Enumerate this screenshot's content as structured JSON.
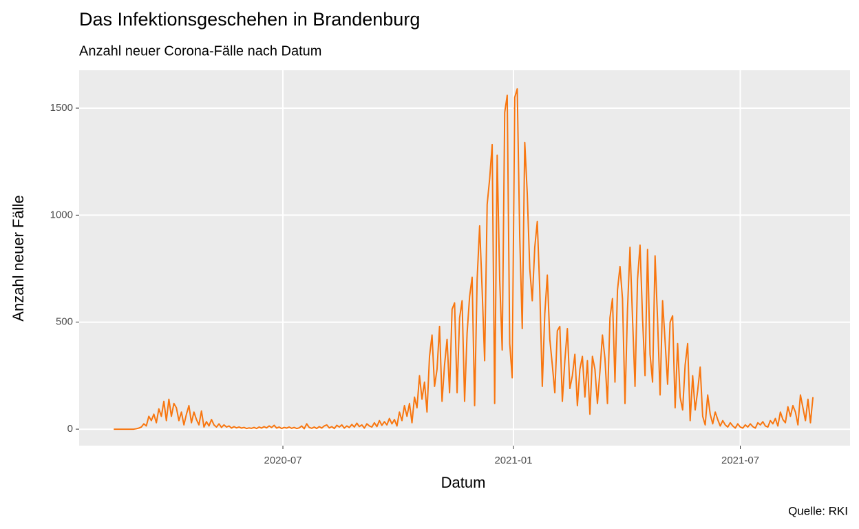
{
  "chart_data": {
    "type": "line",
    "title": "Das Infektionsgeschehen in Brandenburg",
    "subtitle": "Anzahl neuer Corona-Fälle nach Datum",
    "x_label": "Datum",
    "y_label": "Anzahl neuer Fälle",
    "caption": "Quelle: RKI",
    "x": [
      47,
      49,
      51,
      53,
      55,
      57,
      59,
      61,
      63,
      65,
      67,
      69,
      71,
      73,
      75,
      77,
      79,
      81,
      83,
      85,
      87,
      89,
      91,
      93,
      95,
      97,
      99,
      101,
      103,
      105,
      107,
      109,
      111,
      113,
      115,
      117,
      119,
      121,
      123,
      125,
      127,
      129,
      131,
      133,
      135,
      137,
      139,
      141,
      143,
      145,
      147,
      149,
      151,
      153,
      155,
      157,
      159,
      161,
      163,
      165,
      167,
      169,
      171,
      173,
      175,
      177,
      179,
      181,
      183,
      185,
      187,
      189,
      191,
      193,
      195,
      197,
      199,
      201,
      203,
      205,
      207,
      209,
      211,
      213,
      215,
      217,
      219,
      221,
      223,
      225,
      227,
      229,
      231,
      233,
      235,
      237,
      239,
      241,
      243,
      245,
      247,
      249,
      251,
      253,
      255,
      257,
      259,
      261,
      263,
      265,
      267,
      269,
      271,
      273,
      275,
      277,
      279,
      281,
      283,
      285,
      287,
      289,
      291,
      293,
      295,
      297,
      299,
      301,
      303,
      305,
      307,
      309,
      311,
      313,
      315,
      317,
      319,
      321,
      323,
      325,
      327,
      329,
      331,
      333,
      335,
      337,
      339,
      341,
      343,
      345,
      347,
      349,
      351,
      353,
      355,
      357,
      359,
      361,
      363,
      365,
      367,
      369,
      371,
      373,
      375,
      377,
      379,
      381,
      383,
      385,
      387,
      389,
      391,
      393,
      395,
      397,
      399,
      401,
      403,
      405,
      407,
      409,
      411,
      413,
      415,
      417,
      419,
      421,
      423,
      425,
      427,
      429,
      431,
      433,
      435,
      437,
      439,
      441,
      443,
      445,
      447,
      449,
      451,
      453,
      455,
      457,
      459,
      461,
      463,
      465,
      467,
      469,
      471,
      473,
      475,
      477,
      479,
      481,
      483,
      485,
      487,
      489,
      491,
      493,
      495,
      497,
      499,
      501,
      503,
      505,
      507,
      509,
      511,
      513,
      515,
      517,
      519,
      521,
      523,
      525,
      527,
      529,
      531,
      533,
      535,
      537,
      539,
      541,
      543,
      545,
      547,
      549,
      551,
      553,
      555,
      557,
      559,
      561,
      563,
      565,
      567,
      569,
      571,
      573,
      575,
      577,
      579,
      581,
      583,
      585,
      587,
      589,
      591,
      593,
      595,
      597,
      599,
      601,
      603,
      605
    ],
    "series": [
      {
        "name": "Anzahl neuer Fälle",
        "color": "#f8760f",
        "values": [
          0,
          0,
          0,
          0,
          0,
          0,
          0,
          0,
          0,
          2,
          5,
          10,
          25,
          15,
          60,
          40,
          70,
          30,
          95,
          60,
          130,
          40,
          140,
          60,
          120,
          100,
          40,
          80,
          20,
          70,
          110,
          30,
          80,
          45,
          20,
          85,
          10,
          35,
          15,
          45,
          20,
          10,
          25,
          8,
          20,
          10,
          15,
          5,
          12,
          6,
          10,
          5,
          8,
          3,
          6,
          4,
          8,
          3,
          10,
          5,
          12,
          6,
          15,
          8,
          18,
          5,
          10,
          3,
          8,
          5,
          10,
          4,
          8,
          3,
          6,
          15,
          2,
          25,
          8,
          4,
          10,
          3,
          12,
          5,
          15,
          20,
          6,
          12,
          3,
          18,
          10,
          20,
          5,
          15,
          8,
          22,
          10,
          28,
          12,
          20,
          5,
          25,
          15,
          10,
          30,
          12,
          40,
          18,
          35,
          20,
          50,
          25,
          45,
          15,
          80,
          40,
          110,
          60,
          120,
          30,
          150,
          100,
          250,
          140,
          220,
          80,
          340,
          440,
          200,
          280,
          480,
          130,
          300,
          420,
          170,
          560,
          590,
          170,
          520,
          600,
          130,
          450,
          620,
          710,
          110,
          700,
          950,
          650,
          320,
          1050,
          1170,
          1330,
          120,
          1280,
          700,
          370,
          1480,
          1560,
          400,
          240,
          1550,
          1590,
          900,
          470,
          1340,
          1100,
          750,
          600,
          850,
          970,
          650,
          200,
          540,
          720,
          420,
          300,
          170,
          460,
          480,
          130,
          320,
          470,
          190,
          250,
          350,
          110,
          280,
          340,
          150,
          320,
          70,
          340,
          280,
          120,
          270,
          440,
          330,
          120,
          520,
          610,
          220,
          650,
          760,
          610,
          120,
          560,
          850,
          520,
          200,
          700,
          860,
          520,
          250,
          840,
          350,
          220,
          810,
          510,
          160,
          600,
          410,
          210,
          500,
          530,
          100,
          400,
          150,
          90,
          300,
          400,
          40,
          250,
          90,
          180,
          290,
          60,
          20,
          160,
          70,
          25,
          80,
          45,
          15,
          40,
          20,
          10,
          30,
          15,
          5,
          25,
          10,
          5,
          20,
          10,
          25,
          12,
          5,
          30,
          20,
          35,
          15,
          10,
          40,
          25,
          50,
          15,
          80,
          45,
          30,
          105,
          60,
          110,
          80,
          20,
          160,
          100,
          40,
          140,
          30,
          150
        ]
      }
    ],
    "xlim": [
      19.4,
      634.6
    ],
    "xticks": [
      {
        "value": 182,
        "label": "2020-07"
      },
      {
        "value": 366,
        "label": "2021-01"
      },
      {
        "value": 547,
        "label": "2021-07"
      }
    ],
    "ylim": [
      -77,
      1677
    ],
    "yticks": [
      0,
      500,
      1000,
      1500
    ],
    "grid": true
  }
}
